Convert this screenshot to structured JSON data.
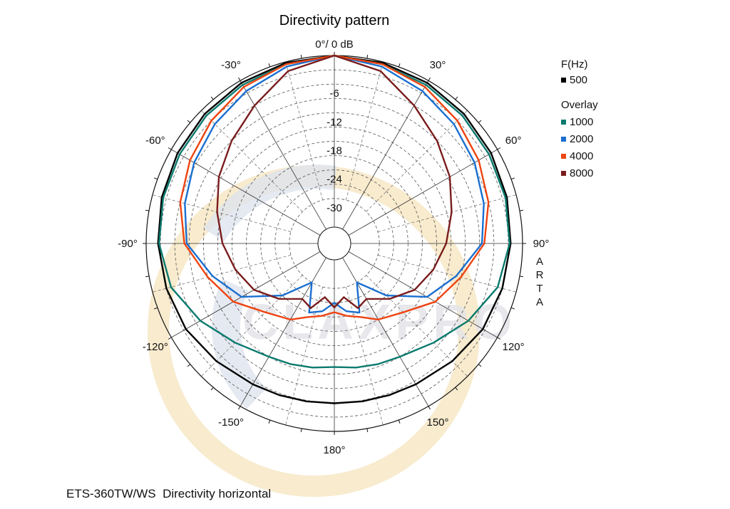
{
  "chart_data": {
    "type": "polar",
    "title": "Directivity pattern",
    "top_label": "0°/ 0 dB",
    "radial_ticks": [
      "-6",
      "-12",
      "-18",
      "-24",
      "-30"
    ],
    "radial_values": [
      -6,
      -12,
      -18,
      -24,
      -30
    ],
    "r_range_db": [
      -36,
      0
    ],
    "angle_labels": [
      {
        "text": "30°",
        "deg": 30
      },
      {
        "text": "60°",
        "deg": 60
      },
      {
        "text": "90°",
        "deg": 90
      },
      {
        "text": "120°",
        "deg": 120
      },
      {
        "text": "150°",
        "deg": 150
      },
      {
        "text": "180°",
        "deg": 180
      },
      {
        "text": "-150°",
        "deg": -150
      },
      {
        "text": "-120°",
        "deg": -120
      },
      {
        "text": "-90°",
        "deg": -90
      },
      {
        "text": "-60°",
        "deg": -60
      },
      {
        "text": "-30°",
        "deg": -30
      }
    ],
    "angles_deg": [
      0,
      15,
      30,
      45,
      60,
      75,
      90,
      105,
      120,
      135,
      150,
      160,
      170,
      180
    ],
    "series": [
      {
        "name": "500",
        "color": "#000000",
        "values": [
          0,
          -0.2,
          -0.5,
          -1,
          -1.5,
          -2,
          -2.5,
          -3,
          -3.5,
          -4.5,
          -5.3,
          -5.6,
          -5.8,
          -5.9
        ]
      },
      {
        "name": "1000",
        "color": "#0a7a6e",
        "values": [
          0,
          -0.5,
          -1,
          -1.5,
          -2,
          -2.3,
          -2.7,
          -4,
          -7,
          -10,
          -12,
          -12.5,
          -13,
          -13.5
        ]
      },
      {
        "name": "2000",
        "color": "#1a6fd0",
        "values": [
          0,
          -1,
          -2.5,
          -4,
          -5.5,
          -7,
          -8.5,
          -13,
          -17,
          -24,
          -30,
          -24,
          -25,
          -27
        ]
      },
      {
        "name": "4000",
        "color": "#ee4411",
        "values": [
          0,
          -0.5,
          -1.5,
          -3,
          -4.5,
          -6,
          -8,
          -12,
          -15,
          -19,
          -21,
          -23,
          -24,
          -25
        ]
      },
      {
        "name": "8000",
        "color": "#7a1c1c",
        "values": [
          0,
          -2,
          -6,
          -9,
          -11.5,
          -14,
          -16,
          -18,
          -20,
          -23,
          -26,
          -25,
          -28,
          -26
        ]
      }
    ],
    "legend": {
      "header": "F(Hz)",
      "overlay_header": "Overlay",
      "placement": "right"
    },
    "side_text": [
      "A",
      "R",
      "T",
      "A"
    ],
    "watermark": "CLAXPRO",
    "grid": true
  },
  "footer": {
    "caption": "ETS-360TW/WS  Directivity horizontal"
  }
}
